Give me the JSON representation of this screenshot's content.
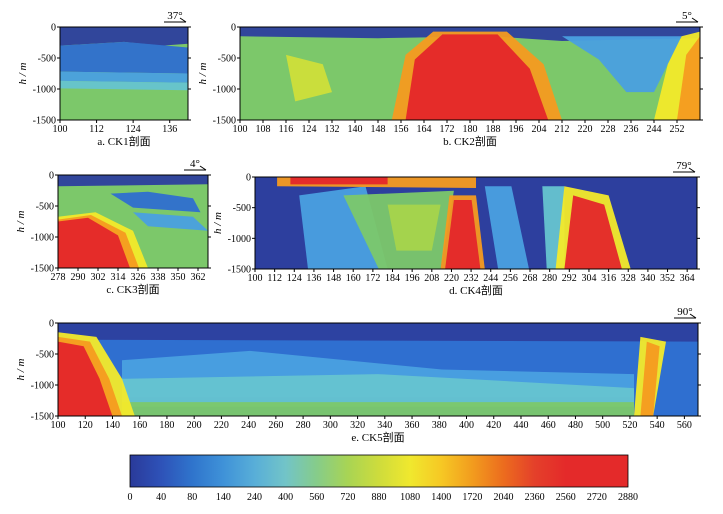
{
  "chart_data": [
    {
      "id": "ck1",
      "type": "heatmap",
      "caption": "a. CK1剖面",
      "xlabel": "",
      "ylabel": "h / m",
      "azimuth": "37°",
      "xlim": [
        100,
        142
      ],
      "ylim": [
        -1500,
        0
      ],
      "xticks": [
        100,
        112,
        124,
        136
      ],
      "yticks": [
        0,
        -500,
        -1000,
        -1500
      ]
    },
    {
      "id": "ck2",
      "type": "heatmap",
      "caption": "b. CK2剖面",
      "xlabel": "",
      "ylabel": "h / m",
      "azimuth": "5°",
      "xlim": [
        100,
        260
      ],
      "ylim": [
        -1500,
        0
      ],
      "xticks": [
        100,
        108,
        116,
        124,
        132,
        140,
        148,
        156,
        164,
        172,
        180,
        188,
        196,
        204,
        212,
        220,
        228,
        236,
        244,
        252
      ],
      "yticks": [
        0,
        -500,
        -1000,
        -1500
      ]
    },
    {
      "id": "ck3",
      "type": "heatmap",
      "caption": "c. CK3剖面",
      "xlabel": "",
      "ylabel": "h / m",
      "azimuth": "4°",
      "xlim": [
        278,
        368
      ],
      "ylim": [
        -1500,
        0
      ],
      "xticks": [
        278,
        290,
        302,
        314,
        326,
        338,
        350,
        362
      ],
      "yticks": [
        0,
        -500,
        -1000,
        -1500
      ]
    },
    {
      "id": "ck4",
      "type": "heatmap",
      "caption": "d. CK4剖面",
      "xlabel": "",
      "ylabel": "h / m",
      "azimuth": "79°",
      "xlim": [
        100,
        370
      ],
      "ylim": [
        -1500,
        0
      ],
      "xticks": [
        100,
        112,
        124,
        136,
        148,
        160,
        172,
        184,
        196,
        208,
        220,
        232,
        244,
        256,
        268,
        280,
        292,
        304,
        316,
        328,
        340,
        352,
        364
      ],
      "yticks": [
        0,
        -500,
        -1000,
        -1500
      ]
    },
    {
      "id": "ck5",
      "type": "heatmap",
      "caption": "e. CK5剖面",
      "xlabel": "",
      "ylabel": "h / m",
      "azimuth": "90°",
      "xlim": [
        100,
        570
      ],
      "ylim": [
        -1500,
        0
      ],
      "xticks": [
        100,
        120,
        140,
        160,
        180,
        200,
        220,
        240,
        260,
        280,
        300,
        320,
        340,
        360,
        380,
        400,
        420,
        440,
        460,
        480,
        500,
        520,
        540,
        560
      ],
      "yticks": [
        0,
        -500,
        -1000,
        -1500
      ]
    }
  ],
  "colorbar": {
    "labels": [
      "0",
      "40",
      "80",
      "140",
      "240",
      "400",
      "560",
      "720",
      "880",
      "1080",
      "1400",
      "1720",
      "2040",
      "2360",
      "2560",
      "2720",
      "2880"
    ],
    "colors": [
      "#2b46a8",
      "#2f63c4",
      "#3e88d6",
      "#5aa8de",
      "#7cc8d8",
      "#9ad49a",
      "#b8d86a",
      "#d8e040",
      "#f2ec2a",
      "#f8c820",
      "#f49a1c",
      "#ee6a1e",
      "#e63a22",
      "#e32626",
      "#e32626",
      "#e32626",
      "#e32626"
    ]
  }
}
